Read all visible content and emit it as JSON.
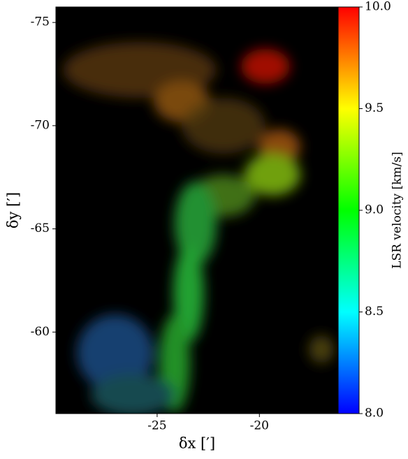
{
  "chart_data": {
    "type": "image",
    "xlabel": "δx [′]",
    "ylabel": "δy [′]",
    "xlim": [
      -29.95,
      -16.15
    ],
    "xticks": [
      -25,
      -20
    ],
    "ylim": [
      -56.05,
      -75.75
    ],
    "yticks": [
      -75,
      -70,
      -65,
      -60
    ],
    "colorbar": {
      "label": "LSR velocity [km/s]",
      "lim": [
        8,
        10
      ],
      "ticks": [
        {
          "value": 8,
          "label": "8.0"
        },
        {
          "value": 8.5,
          "label": "8.5"
        },
        {
          "value": 9,
          "label": "9.0"
        },
        {
          "value": 9.5,
          "label": "9.5"
        },
        {
          "value": 10,
          "label": "10.0"
        }
      ],
      "colormap": [
        "#0000ff",
        "#00ffff",
        "#00ff00",
        "#ffff00",
        "#ff0000"
      ]
    }
  }
}
